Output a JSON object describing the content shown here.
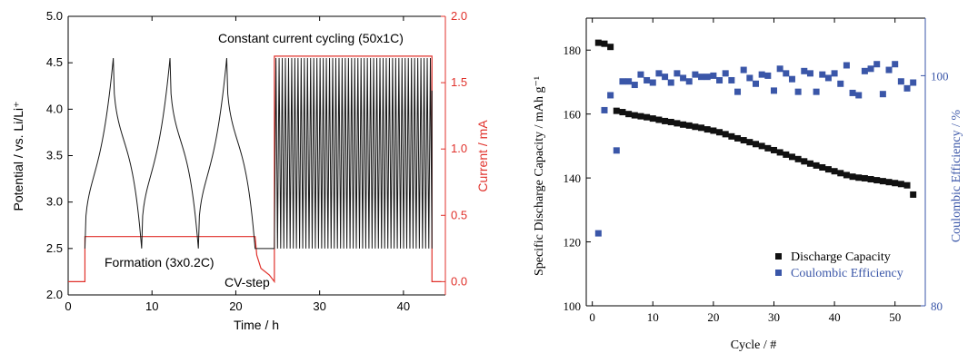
{
  "chart_data": [
    {
      "type": "line",
      "xlabel": "Time / h",
      "ylabel": "Potential / vs. Li/Li⁺",
      "y2label": "Current / mA",
      "xlim": [
        0,
        45
      ],
      "ylim": [
        2.0,
        5.0
      ],
      "y2lim": [
        -0.1,
        2.0
      ],
      "xticks": [
        "0",
        "10",
        "20",
        "30",
        "40"
      ],
      "yticks": [
        "2.0",
        "2.5",
        "3.0",
        "3.5",
        "4.0",
        "4.5",
        "5.0"
      ],
      "y2ticks": [
        "0.0",
        "0.5",
        "1.0",
        "1.5",
        "2.0"
      ],
      "grid": false,
      "annotations": [
        "Constant current cycling (50x1C)",
        "Formation (3x0.2C)",
        "CV-step"
      ],
      "colors": {
        "potential": "#1a1a1a",
        "current": "#e0312b"
      },
      "formation": {
        "cycles": 3,
        "t_start": 2.0,
        "t_end": 22.3,
        "v_min": 2.5,
        "v_max": 4.55
      },
      "cv_step": {
        "t_start": 22.3,
        "t_end": 24.6,
        "v": 2.5
      },
      "cc_cycling": {
        "cycles": 50,
        "t_start": 24.6,
        "t_end": 43.4,
        "v_min": 2.5,
        "v_max": 4.55
      },
      "current_profile": {
        "points": [
          [
            0,
            0.0
          ],
          [
            2.0,
            0.0
          ],
          [
            2.0,
            0.34
          ],
          [
            22.3,
            0.34
          ],
          [
            22.5,
            0.2
          ],
          [
            23.0,
            0.1
          ],
          [
            24.0,
            0.05
          ],
          [
            24.6,
            0.0
          ],
          [
            24.6,
            1.7
          ],
          [
            43.4,
            1.7
          ],
          [
            43.4,
            0.0
          ],
          [
            44.5,
            0.0
          ]
        ]
      }
    },
    {
      "type": "scatter",
      "xlabel": "Cycle / #",
      "ylabel": "Specific Discharge Capacity / mAh g⁻¹",
      "y2label": "Coulombic Efficiency / %",
      "xlim": [
        -1,
        55
      ],
      "ylim": [
        100,
        190
      ],
      "y2lim": [
        80,
        105
      ],
      "xticks": [
        "0",
        "10",
        "20",
        "30",
        "40",
        "50"
      ],
      "yticks": [
        "100",
        "120",
        "140",
        "160",
        "180"
      ],
      "y2ticks": [
        "80",
        "100"
      ],
      "grid": false,
      "legend_position": "bottom-right",
      "series": [
        {
          "name": "Discharge Capacity",
          "color": "#111111",
          "axis": "left",
          "points": [
            [
              1,
              182.3
            ],
            [
              2,
              182.0
            ],
            [
              3,
              181.0
            ],
            [
              4,
              161.0
            ],
            [
              5,
              160.6
            ],
            [
              6,
              160.0
            ],
            [
              7,
              159.6
            ],
            [
              8,
              159.3
            ],
            [
              9,
              159.0
            ],
            [
              10,
              158.6
            ],
            [
              11,
              158.2
            ],
            [
              12,
              157.8
            ],
            [
              13,
              157.5
            ],
            [
              14,
              157.1
            ],
            [
              15,
              156.7
            ],
            [
              16,
              156.4
            ],
            [
              17,
              156.0
            ],
            [
              18,
              155.7
            ],
            [
              19,
              155.2
            ],
            [
              20,
              154.8
            ],
            [
              21,
              154.3
            ],
            [
              22,
              153.7
            ],
            [
              23,
              153.0
            ],
            [
              24,
              152.4
            ],
            [
              25,
              151.8
            ],
            [
              26,
              151.2
            ],
            [
              27,
              150.6
            ],
            [
              28,
              150.0
            ],
            [
              29,
              149.3
            ],
            [
              30,
              148.7
            ],
            [
              31,
              148.0
            ],
            [
              32,
              147.3
            ],
            [
              33,
              146.6
            ],
            [
              34,
              145.9
            ],
            [
              35,
              145.2
            ],
            [
              36,
              144.5
            ],
            [
              37,
              143.9
            ],
            [
              38,
              143.3
            ],
            [
              39,
              142.7
            ],
            [
              40,
              142.1
            ],
            [
              41,
              141.5
            ],
            [
              42,
              140.9
            ],
            [
              43,
              140.4
            ],
            [
              44,
              140.1
            ],
            [
              45,
              139.9
            ],
            [
              46,
              139.6
            ],
            [
              47,
              139.3
            ],
            [
              48,
              139.0
            ],
            [
              49,
              138.7
            ],
            [
              50,
              138.4
            ],
            [
              51,
              138.1
            ],
            [
              52,
              137.7
            ],
            [
              53,
              134.8
            ]
          ]
        },
        {
          "name": "Coulombic Efficiency",
          "color": "#3a56a8",
          "axis": "right",
          "points": [
            [
              1,
              86.3
            ],
            [
              2,
              97.0
            ],
            [
              3,
              98.3
            ],
            [
              4,
              93.5
            ],
            [
              5,
              99.5
            ],
            [
              6,
              99.5
            ],
            [
              7,
              99.2
            ],
            [
              8,
              100.1
            ],
            [
              9,
              99.6
            ],
            [
              10,
              99.4
            ],
            [
              11,
              100.2
            ],
            [
              12,
              99.9
            ],
            [
              13,
              99.4
            ],
            [
              14,
              100.2
            ],
            [
              15,
              99.8
            ],
            [
              16,
              99.5
            ],
            [
              17,
              100.1
            ],
            [
              18,
              99.9
            ],
            [
              19,
              99.9
            ],
            [
              20,
              100.0
            ],
            [
              21,
              99.6
            ],
            [
              22,
              100.2
            ],
            [
              23,
              99.6
            ],
            [
              24,
              98.6
            ],
            [
              25,
              100.5
            ],
            [
              26,
              99.8
            ],
            [
              27,
              99.3
            ],
            [
              28,
              100.1
            ],
            [
              29,
              100.0
            ],
            [
              30,
              98.7
            ],
            [
              31,
              100.6
            ],
            [
              32,
              100.2
            ],
            [
              33,
              99.7
            ],
            [
              34,
              98.6
            ],
            [
              35,
              100.4
            ],
            [
              36,
              100.2
            ],
            [
              37,
              98.6
            ],
            [
              38,
              100.1
            ],
            [
              39,
              99.8
            ],
            [
              40,
              100.2
            ],
            [
              41,
              99.3
            ],
            [
              42,
              100.9
            ],
            [
              43,
              98.5
            ],
            [
              44,
              98.3
            ],
            [
              45,
              100.4
            ],
            [
              46,
              100.6
            ],
            [
              47,
              101.0
            ],
            [
              48,
              98.4
            ],
            [
              49,
              100.5
            ],
            [
              50,
              101.0
            ],
            [
              51,
              99.5
            ],
            [
              52,
              98.9
            ],
            [
              53,
              99.4
            ]
          ]
        }
      ]
    }
  ]
}
